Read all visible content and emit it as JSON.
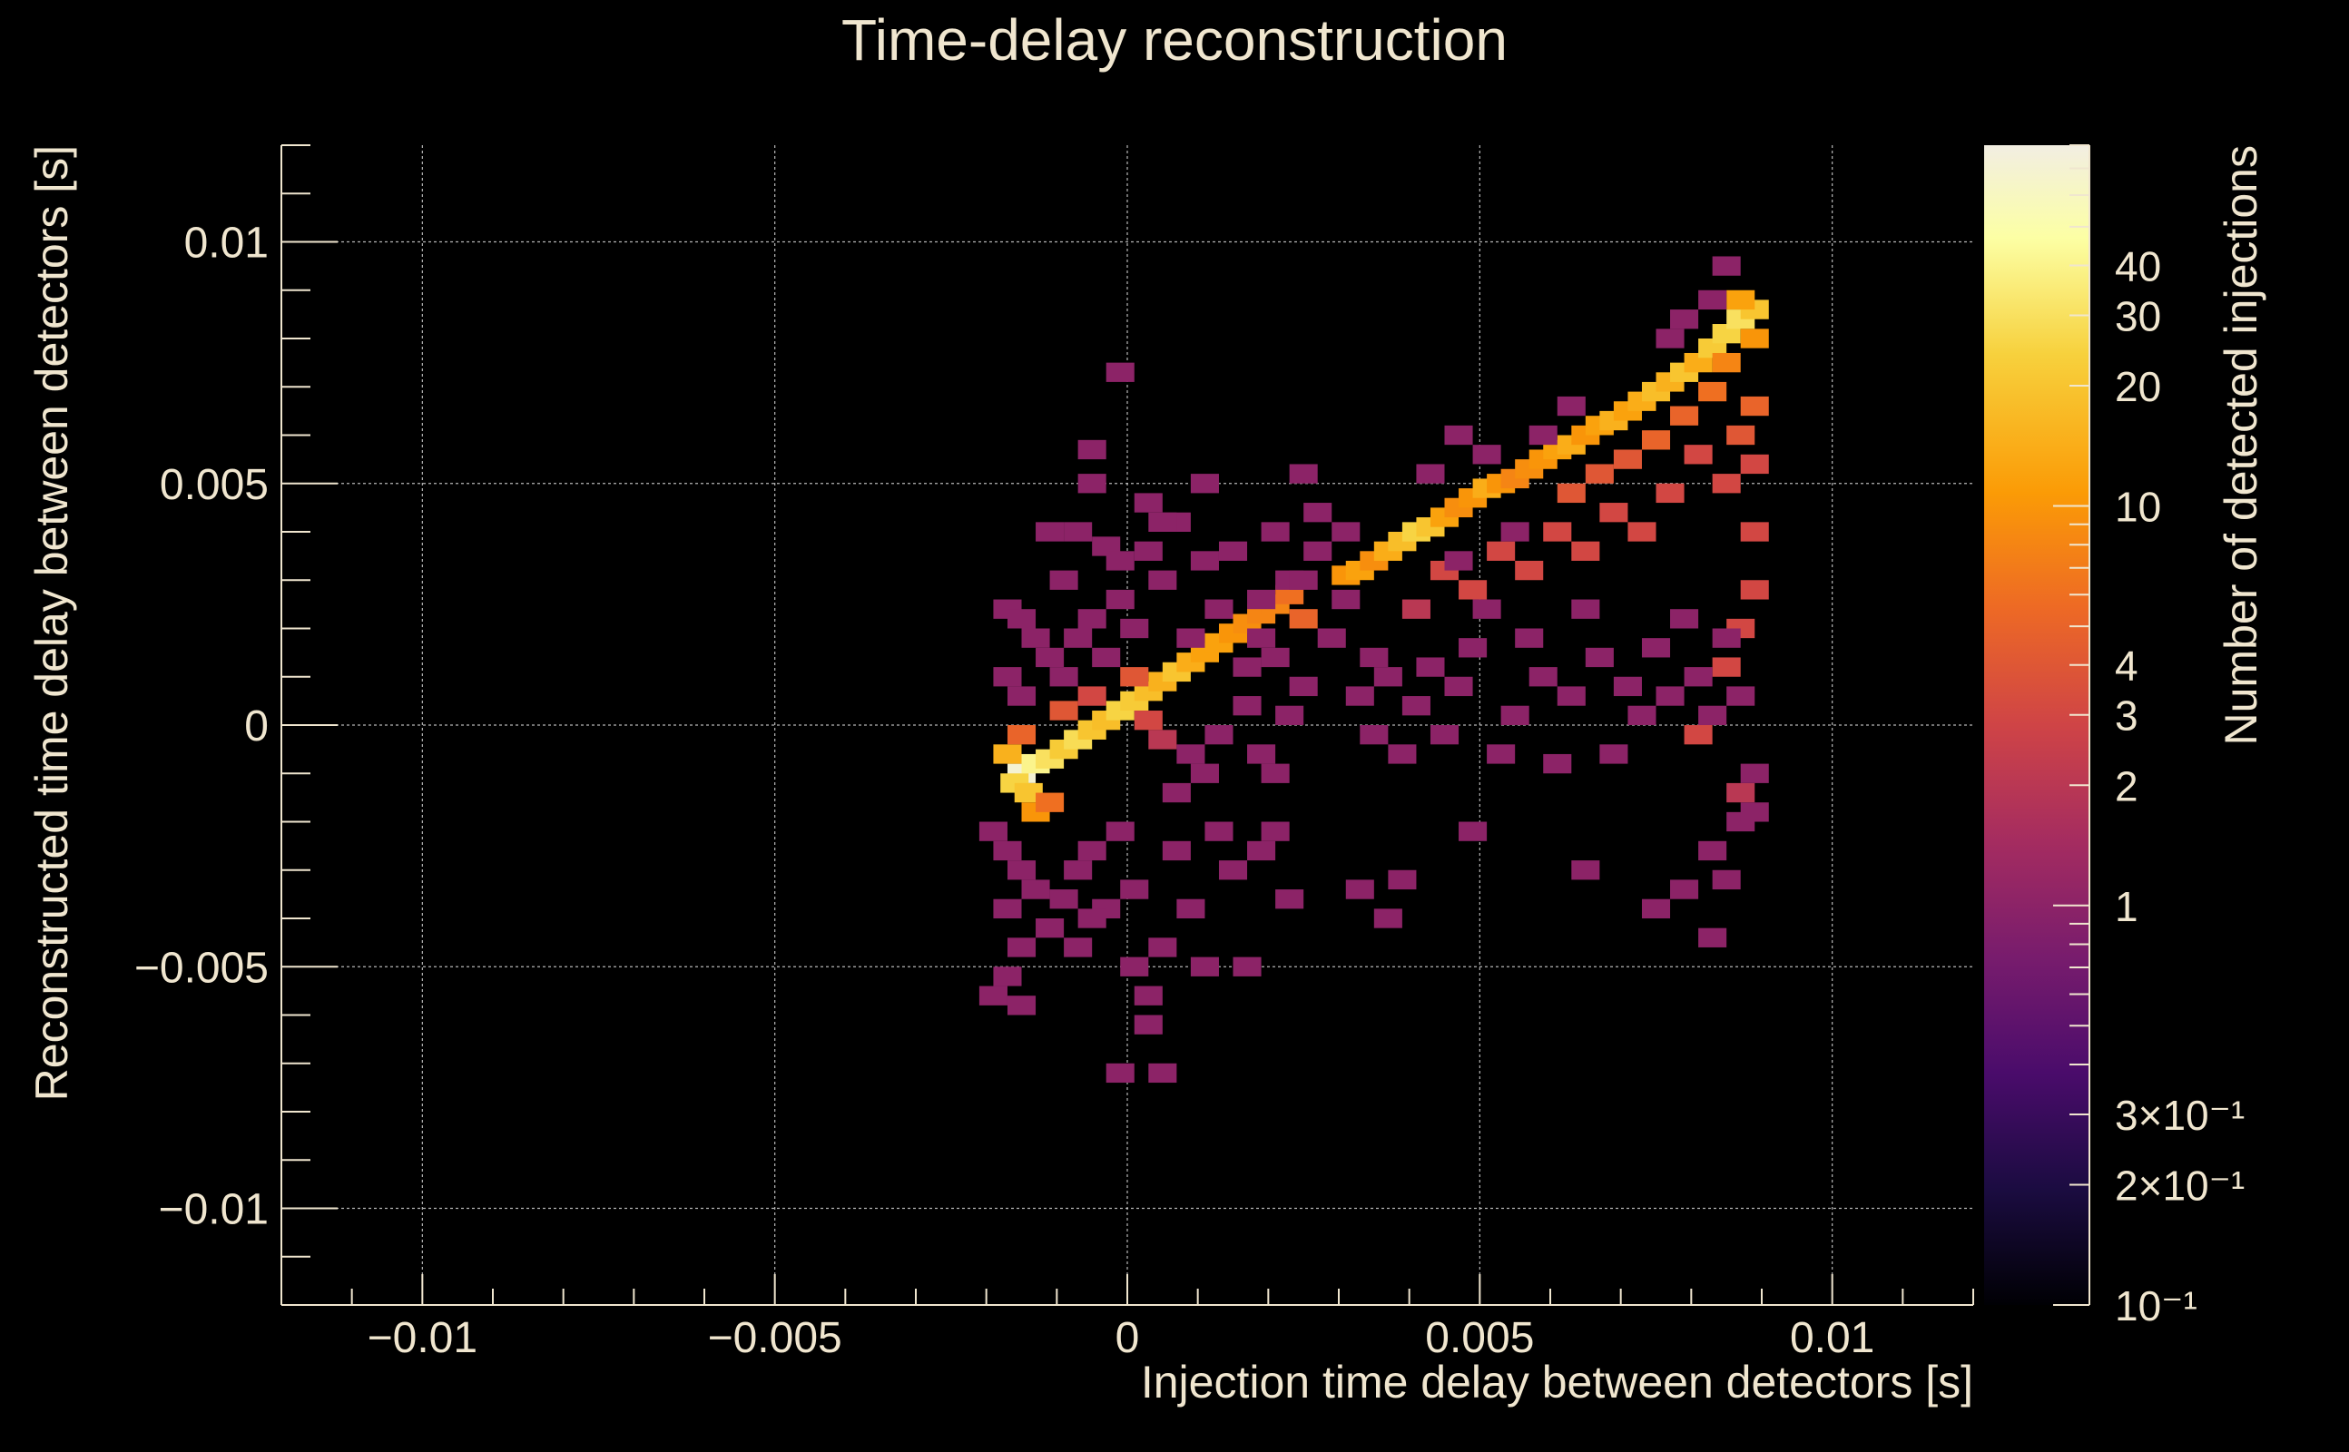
{
  "chart_data": {
    "type": "heatmap",
    "title": "Time-delay reconstruction",
    "xlabel": "Injection time delay between detectors [s]",
    "ylabel": "Reconstructed time delay between detectors [s]",
    "zlabel": "Number of detected injections",
    "xlim": [
      -0.012,
      0.012
    ],
    "ylim": [
      -0.012,
      0.012
    ],
    "zlim": [
      0.1,
      80
    ],
    "z_scale": "log",
    "grid": true,
    "bin_width": 0.0004,
    "x_ticks": [
      {
        "value": -0.01,
        "label": "−0.01"
      },
      {
        "value": -0.005,
        "label": "−0.005"
      },
      {
        "value": 0,
        "label": "0"
      },
      {
        "value": 0.005,
        "label": "0.005"
      },
      {
        "value": 0.01,
        "label": "0.01"
      }
    ],
    "y_ticks": [
      {
        "value": 0.01,
        "label": "0.01"
      },
      {
        "value": 0.005,
        "label": "0.005"
      },
      {
        "value": 0,
        "label": "0"
      },
      {
        "value": -0.005,
        "label": "−0.005"
      },
      {
        "value": -0.01,
        "label": "−0.01"
      }
    ],
    "z_ticks": [
      {
        "value": 40,
        "label": "40"
      },
      {
        "value": 30,
        "label": "30"
      },
      {
        "value": 20,
        "label": "20"
      },
      {
        "value": 10,
        "label": "10"
      },
      {
        "value": 4,
        "label": "4"
      },
      {
        "value": 3,
        "label": "3"
      },
      {
        "value": 2,
        "label": "2"
      },
      {
        "value": 1,
        "label": "1"
      },
      {
        "value": 0.3,
        "label": "3×10⁻¹"
      },
      {
        "value": 0.2,
        "label": "2×10⁻¹"
      },
      {
        "value": 0.1,
        "label": "10⁻¹"
      }
    ],
    "colormap": [
      "#000004",
      "#1b0c41",
      "#4a0c6b",
      "#781c6d",
      "#a52c60",
      "#cf4446",
      "#ed6925",
      "#fb9b06",
      "#f7d13d",
      "#fcffa4",
      "#f2eee2"
    ],
    "cells": [
      [
        -0.0015,
        -0.001,
        70
      ],
      [
        -0.0013,
        -0.0008,
        40
      ],
      [
        -0.0011,
        -0.0007,
        30
      ],
      [
        -0.0016,
        -0.0012,
        25
      ],
      [
        -0.0014,
        -0.0014,
        20
      ],
      [
        -0.0017,
        -0.0006,
        15
      ],
      [
        -0.0009,
        -0.0005,
        22
      ],
      [
        -0.0007,
        -0.0003,
        28
      ],
      [
        -0.0005,
        -0.0001,
        20
      ],
      [
        -0.0003,
        0.0001,
        18
      ],
      [
        -0.0001,
        0.0003,
        25
      ],
      [
        0.0001,
        0.0005,
        22
      ],
      [
        0.0003,
        0.0007,
        18
      ],
      [
        0.0005,
        0.0009,
        15
      ],
      [
        0.0007,
        0.0011,
        20
      ],
      [
        0.0009,
        0.0013,
        14
      ],
      [
        0.0011,
        0.0015,
        12
      ],
      [
        0.0013,
        0.0017,
        12
      ],
      [
        0.0015,
        0.0019,
        10
      ],
      [
        0.0017,
        0.0021,
        9
      ],
      [
        0.0019,
        0.0023,
        8
      ],
      [
        0.0021,
        0.0025,
        8
      ],
      [
        0.0023,
        0.0027,
        6
      ],
      [
        0.0025,
        0.0022,
        5
      ],
      [
        -0.0013,
        -0.0018,
        10
      ],
      [
        -0.0011,
        -0.0016,
        6
      ],
      [
        -0.0015,
        -0.0002,
        5
      ],
      [
        -0.0009,
        0.0003,
        4
      ],
      [
        -0.0005,
        0.0006,
        3
      ],
      [
        0.0001,
        0.001,
        4
      ],
      [
        0.0003,
        0.0001,
        3
      ],
      [
        0.0005,
        -0.0003,
        2
      ],
      [
        0.0031,
        0.0031,
        10
      ],
      [
        0.0033,
        0.0032,
        12
      ],
      [
        0.0035,
        0.0034,
        9
      ],
      [
        0.0037,
        0.0036,
        14
      ],
      [
        0.0039,
        0.0038,
        18
      ],
      [
        0.0041,
        0.004,
        25
      ],
      [
        0.0043,
        0.0041,
        20
      ],
      [
        0.0045,
        0.0043,
        12
      ],
      [
        0.0047,
        0.0045,
        9
      ],
      [
        0.0049,
        0.0047,
        10
      ],
      [
        0.0051,
        0.0049,
        14
      ],
      [
        0.0053,
        0.005,
        10
      ],
      [
        0.0055,
        0.0051,
        8
      ],
      [
        0.0057,
        0.0053,
        9
      ],
      [
        0.0059,
        0.0055,
        10
      ],
      [
        0.0061,
        0.0057,
        12
      ],
      [
        0.0063,
        0.0058,
        14
      ],
      [
        0.0065,
        0.006,
        10
      ],
      [
        0.0067,
        0.0062,
        12
      ],
      [
        0.0069,
        0.0063,
        15
      ],
      [
        0.0071,
        0.0065,
        12
      ],
      [
        0.0073,
        0.0067,
        14
      ],
      [
        0.0075,
        0.0069,
        18
      ],
      [
        0.0077,
        0.0071,
        15
      ],
      [
        0.0079,
        0.0073,
        20
      ],
      [
        0.0081,
        0.0075,
        14
      ],
      [
        0.0083,
        0.0078,
        22
      ],
      [
        0.0085,
        0.0081,
        25
      ],
      [
        0.0087,
        0.0084,
        30
      ],
      [
        0.0089,
        0.0086,
        20
      ],
      [
        0.0087,
        0.0088,
        12
      ],
      [
        0.0089,
        0.008,
        10
      ],
      [
        0.0085,
        0.0075,
        8
      ],
      [
        0.0083,
        0.0069,
        6
      ],
      [
        0.0079,
        0.0064,
        5
      ],
      [
        0.0075,
        0.0059,
        5
      ],
      [
        0.0071,
        0.0055,
        4
      ],
      [
        0.0067,
        0.0052,
        4
      ],
      [
        0.0063,
        0.0048,
        4
      ],
      [
        0.0089,
        0.0066,
        5
      ],
      [
        0.0087,
        0.006,
        4
      ],
      [
        0.0089,
        0.0054,
        3
      ],
      [
        0.0085,
        0.005,
        3
      ],
      [
        0.0081,
        0.0056,
        3
      ],
      [
        0.0077,
        0.0048,
        3
      ],
      [
        0.0073,
        0.004,
        3
      ],
      [
        0.0069,
        0.0044,
        3
      ],
      [
        0.0065,
        0.0036,
        3
      ],
      [
        0.0061,
        0.004,
        3
      ],
      [
        0.0057,
        0.0032,
        3
      ],
      [
        0.0053,
        0.0036,
        3
      ],
      [
        0.0049,
        0.0028,
        3
      ],
      [
        0.0045,
        0.0032,
        3
      ],
      [
        0.0041,
        0.0024,
        2
      ],
      [
        0.0089,
        0.0028,
        3
      ],
      [
        0.0087,
        0.002,
        3
      ],
      [
        0.0085,
        0.0012,
        3
      ],
      [
        0.0081,
        -0.0002,
        3
      ],
      [
        0.0087,
        -0.0014,
        2
      ],
      [
        0.0089,
        0.004,
        3
      ],
      [
        -0.0017,
        0.0024,
        1
      ],
      [
        -0.0015,
        0.0022,
        1
      ],
      [
        -0.0013,
        0.0018,
        1
      ],
      [
        -0.0011,
        0.0014,
        1
      ],
      [
        -0.0017,
        0.001,
        1
      ],
      [
        -0.0015,
        0.0006,
        1
      ],
      [
        -0.0009,
        0.001,
        1
      ],
      [
        -0.0007,
        0.0018,
        1
      ],
      [
        -0.0005,
        0.0022,
        1
      ],
      [
        -0.0003,
        0.0014,
        1
      ],
      [
        -0.0001,
        0.0026,
        1
      ],
      [
        0.0001,
        0.002,
        1
      ],
      [
        -0.0007,
        0.004,
        1
      ],
      [
        -0.0005,
        0.005,
        1
      ],
      [
        -0.0003,
        0.0037,
        1
      ],
      [
        -0.0005,
        0.0057,
        1
      ],
      [
        -0.0001,
        0.0073,
        1
      ],
      [
        0.0003,
        0.0046,
        1
      ],
      [
        0.0007,
        0.0042,
        1
      ],
      [
        0.0011,
        0.0034,
        1
      ],
      [
        0.0015,
        0.0036,
        1
      ],
      [
        0.0019,
        0.0026,
        1
      ],
      [
        0.0021,
        0.004,
        1
      ],
      [
        0.0025,
        0.0052,
        1
      ],
      [
        0.0023,
        0.003,
        1
      ],
      [
        0.0011,
        0.005,
        1
      ],
      [
        0.0005,
        0.003,
        1
      ],
      [
        0.0009,
        0.0018,
        1
      ],
      [
        0.0013,
        0.0024,
        1
      ],
      [
        0.0017,
        0.0012,
        1
      ],
      [
        -0.0019,
        -0.0022,
        1
      ],
      [
        -0.0017,
        -0.0026,
        1
      ],
      [
        -0.0015,
        -0.003,
        1
      ],
      [
        -0.0013,
        -0.0034,
        1
      ],
      [
        -0.0017,
        -0.0038,
        1
      ],
      [
        -0.0015,
        -0.0046,
        1
      ],
      [
        -0.0011,
        -0.0042,
        1
      ],
      [
        -0.0009,
        -0.0036,
        1
      ],
      [
        -0.0007,
        -0.003,
        1
      ],
      [
        -0.0005,
        -0.0026,
        1
      ],
      [
        -0.0003,
        -0.0038,
        1
      ],
      [
        -0.0001,
        -0.0022,
        1
      ],
      [
        -0.0007,
        -0.0046,
        1
      ],
      [
        -0.0005,
        -0.004,
        1
      ],
      [
        -0.0017,
        -0.0052,
        1
      ],
      [
        -0.0019,
        -0.0056,
        1
      ],
      [
        -0.0015,
        -0.0058,
        1
      ],
      [
        0.0001,
        -0.005,
        1
      ],
      [
        0.0003,
        -0.0056,
        1
      ],
      [
        0.0003,
        -0.0062,
        1
      ],
      [
        0.0005,
        -0.0072,
        1
      ],
      [
        -0.0001,
        -0.0072,
        1
      ],
      [
        0.0001,
        -0.0034,
        1
      ],
      [
        0.0005,
        -0.0046,
        1
      ],
      [
        0.0009,
        -0.0038,
        1
      ],
      [
        0.0011,
        -0.005,
        1
      ],
      [
        0.0007,
        -0.0026,
        1
      ],
      [
        0.0013,
        -0.0022,
        1
      ],
      [
        0.0015,
        -0.003,
        1
      ],
      [
        0.0019,
        -0.0026,
        1
      ],
      [
        0.0021,
        -0.0022,
        1
      ],
      [
        0.0023,
        -0.0036,
        1
      ],
      [
        0.0017,
        -0.005,
        1
      ],
      [
        0.0009,
        -0.0006,
        1
      ],
      [
        0.0013,
        -0.0002,
        1
      ],
      [
        0.0017,
        0.0004,
        1
      ],
      [
        0.0021,
        -0.001,
        1
      ],
      [
        0.0023,
        0.0002,
        1
      ],
      [
        0.0025,
        0.0008,
        1
      ],
      [
        0.0007,
        -0.0014,
        1
      ],
      [
        0.0011,
        -0.001,
        1
      ],
      [
        0.0019,
        -0.0006,
        1
      ],
      [
        0.0033,
        0.0006,
        1
      ],
      [
        0.0035,
        -0.0002,
        1
      ],
      [
        0.0037,
        0.001,
        1
      ],
      [
        0.0039,
        -0.0006,
        1
      ],
      [
        0.0041,
        0.0004,
        1
      ],
      [
        0.0043,
        0.0012,
        1
      ],
      [
        0.0045,
        -0.0002,
        1
      ],
      [
        0.0047,
        0.0008,
        1
      ],
      [
        0.0049,
        0.0016,
        1
      ],
      [
        0.0033,
        -0.0034,
        1
      ],
      [
        0.0037,
        -0.004,
        1
      ],
      [
        0.0039,
        -0.0032,
        1
      ],
      [
        0.0049,
        -0.0022,
        1
      ],
      [
        0.0053,
        -0.0006,
        1
      ],
      [
        0.0055,
        0.0002,
        1
      ],
      [
        0.0057,
        0.0018,
        1
      ],
      [
        0.0059,
        0.001,
        1
      ],
      [
        0.0063,
        0.0006,
        1
      ],
      [
        0.0065,
        0.0024,
        1
      ],
      [
        0.0067,
        0.0014,
        1
      ],
      [
        0.0069,
        -0.0006,
        1
      ],
      [
        0.0071,
        0.0008,
        1
      ],
      [
        0.0073,
        0.0002,
        1
      ],
      [
        0.0075,
        0.0016,
        1
      ],
      [
        0.0077,
        0.0006,
        1
      ],
      [
        0.0079,
        0.0022,
        1
      ],
      [
        0.0081,
        0.001,
        1
      ],
      [
        0.0083,
        0.0002,
        1
      ],
      [
        0.0085,
        0.0018,
        1
      ],
      [
        0.0087,
        0.0006,
        1
      ],
      [
        0.0089,
        -0.001,
        1
      ],
      [
        0.0087,
        -0.002,
        1
      ],
      [
        0.0089,
        -0.0018,
        1
      ],
      [
        0.0083,
        -0.0026,
        1
      ],
      [
        0.0079,
        -0.0034,
        1
      ],
      [
        0.0075,
        -0.0038,
        1
      ],
      [
        0.0065,
        -0.003,
        1
      ],
      [
        0.0061,
        -0.0008,
        1
      ],
      [
        0.0085,
        -0.0032,
        1
      ],
      [
        0.0083,
        -0.0044,
        1
      ],
      [
        0.0059,
        0.006,
        1
      ],
      [
        0.0063,
        0.0066,
        1
      ],
      [
        0.0047,
        0.006,
        1
      ],
      [
        0.0043,
        0.0052,
        1
      ],
      [
        0.0051,
        0.0056,
        1
      ],
      [
        0.0055,
        0.004,
        1
      ],
      [
        0.0085,
        0.0095,
        1
      ],
      [
        0.0083,
        0.0088,
        1
      ],
      [
        0.0079,
        0.0084,
        1
      ],
      [
        0.0077,
        0.008,
        1
      ],
      [
        0.0047,
        0.0034,
        1
      ],
      [
        0.0051,
        0.0024,
        1
      ],
      [
        0.0031,
        0.004,
        1
      ],
      [
        0.0027,
        0.0044,
        1
      ],
      [
        0.0029,
        0.0018,
        1
      ],
      [
        0.0031,
        0.0026,
        1
      ],
      [
        0.0035,
        0.0014,
        1
      ],
      [
        -0.0011,
        0.004,
        1
      ],
      [
        -0.0009,
        0.003,
        1
      ],
      [
        -0.0001,
        0.0034,
        1
      ],
      [
        0.0003,
        0.0036,
        1
      ],
      [
        0.0005,
        0.0042,
        1
      ],
      [
        0.0025,
        0.003,
        1
      ],
      [
        0.0027,
        0.0036,
        1
      ],
      [
        0.0019,
        0.0018,
        1
      ],
      [
        0.0021,
        0.0014,
        1
      ]
    ]
  }
}
